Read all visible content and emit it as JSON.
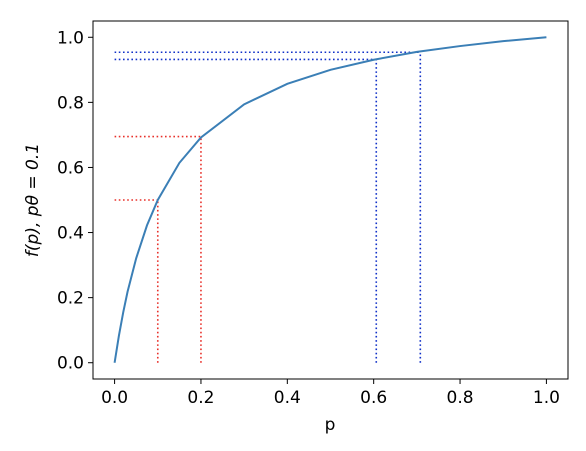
{
  "chart_data": {
    "type": "line",
    "xlabel": "p",
    "ylabel": "f(p), pθ = 0.1",
    "x": [
      0,
      0.01,
      0.02,
      0.03,
      0.05,
      0.075,
      0.1,
      0.15,
      0.2,
      0.3,
      0.4,
      0.5,
      0.6,
      0.7,
      0.8,
      0.9,
      1.0
    ],
    "series": [
      {
        "color": "#3b7fb6",
        "values": [
          0,
          0.083,
          0.155,
          0.218,
          0.321,
          0.422,
          0.5,
          0.614,
          0.692,
          0.794,
          0.857,
          0.9,
          0.931,
          0.955,
          0.973,
          0.988,
          1.0
        ]
      }
    ],
    "guides": [
      {
        "x": 0.1,
        "y": 0.5,
        "color": "#e8302a"
      },
      {
        "x": 0.2,
        "y": 0.695,
        "color": "#e8302a"
      },
      {
        "x": 0.606,
        "y": 0.932,
        "color": "#1030c8"
      },
      {
        "x": 0.708,
        "y": 0.954,
        "color": "#1030c8"
      }
    ],
    "xlim": [
      -0.05,
      1.05
    ],
    "ylim": [
      -0.05,
      1.05
    ],
    "xticks": [
      {
        "value": 0,
        "label": "0.0"
      },
      0.2,
      0.4,
      0.6,
      0.8,
      {
        "value": 1,
        "label": "1.0"
      }
    ],
    "yticks": [
      {
        "value": 0,
        "label": "0.0"
      },
      0.2,
      0.4,
      0.6,
      0.8,
      {
        "value": 1,
        "label": "1.0"
      }
    ]
  }
}
